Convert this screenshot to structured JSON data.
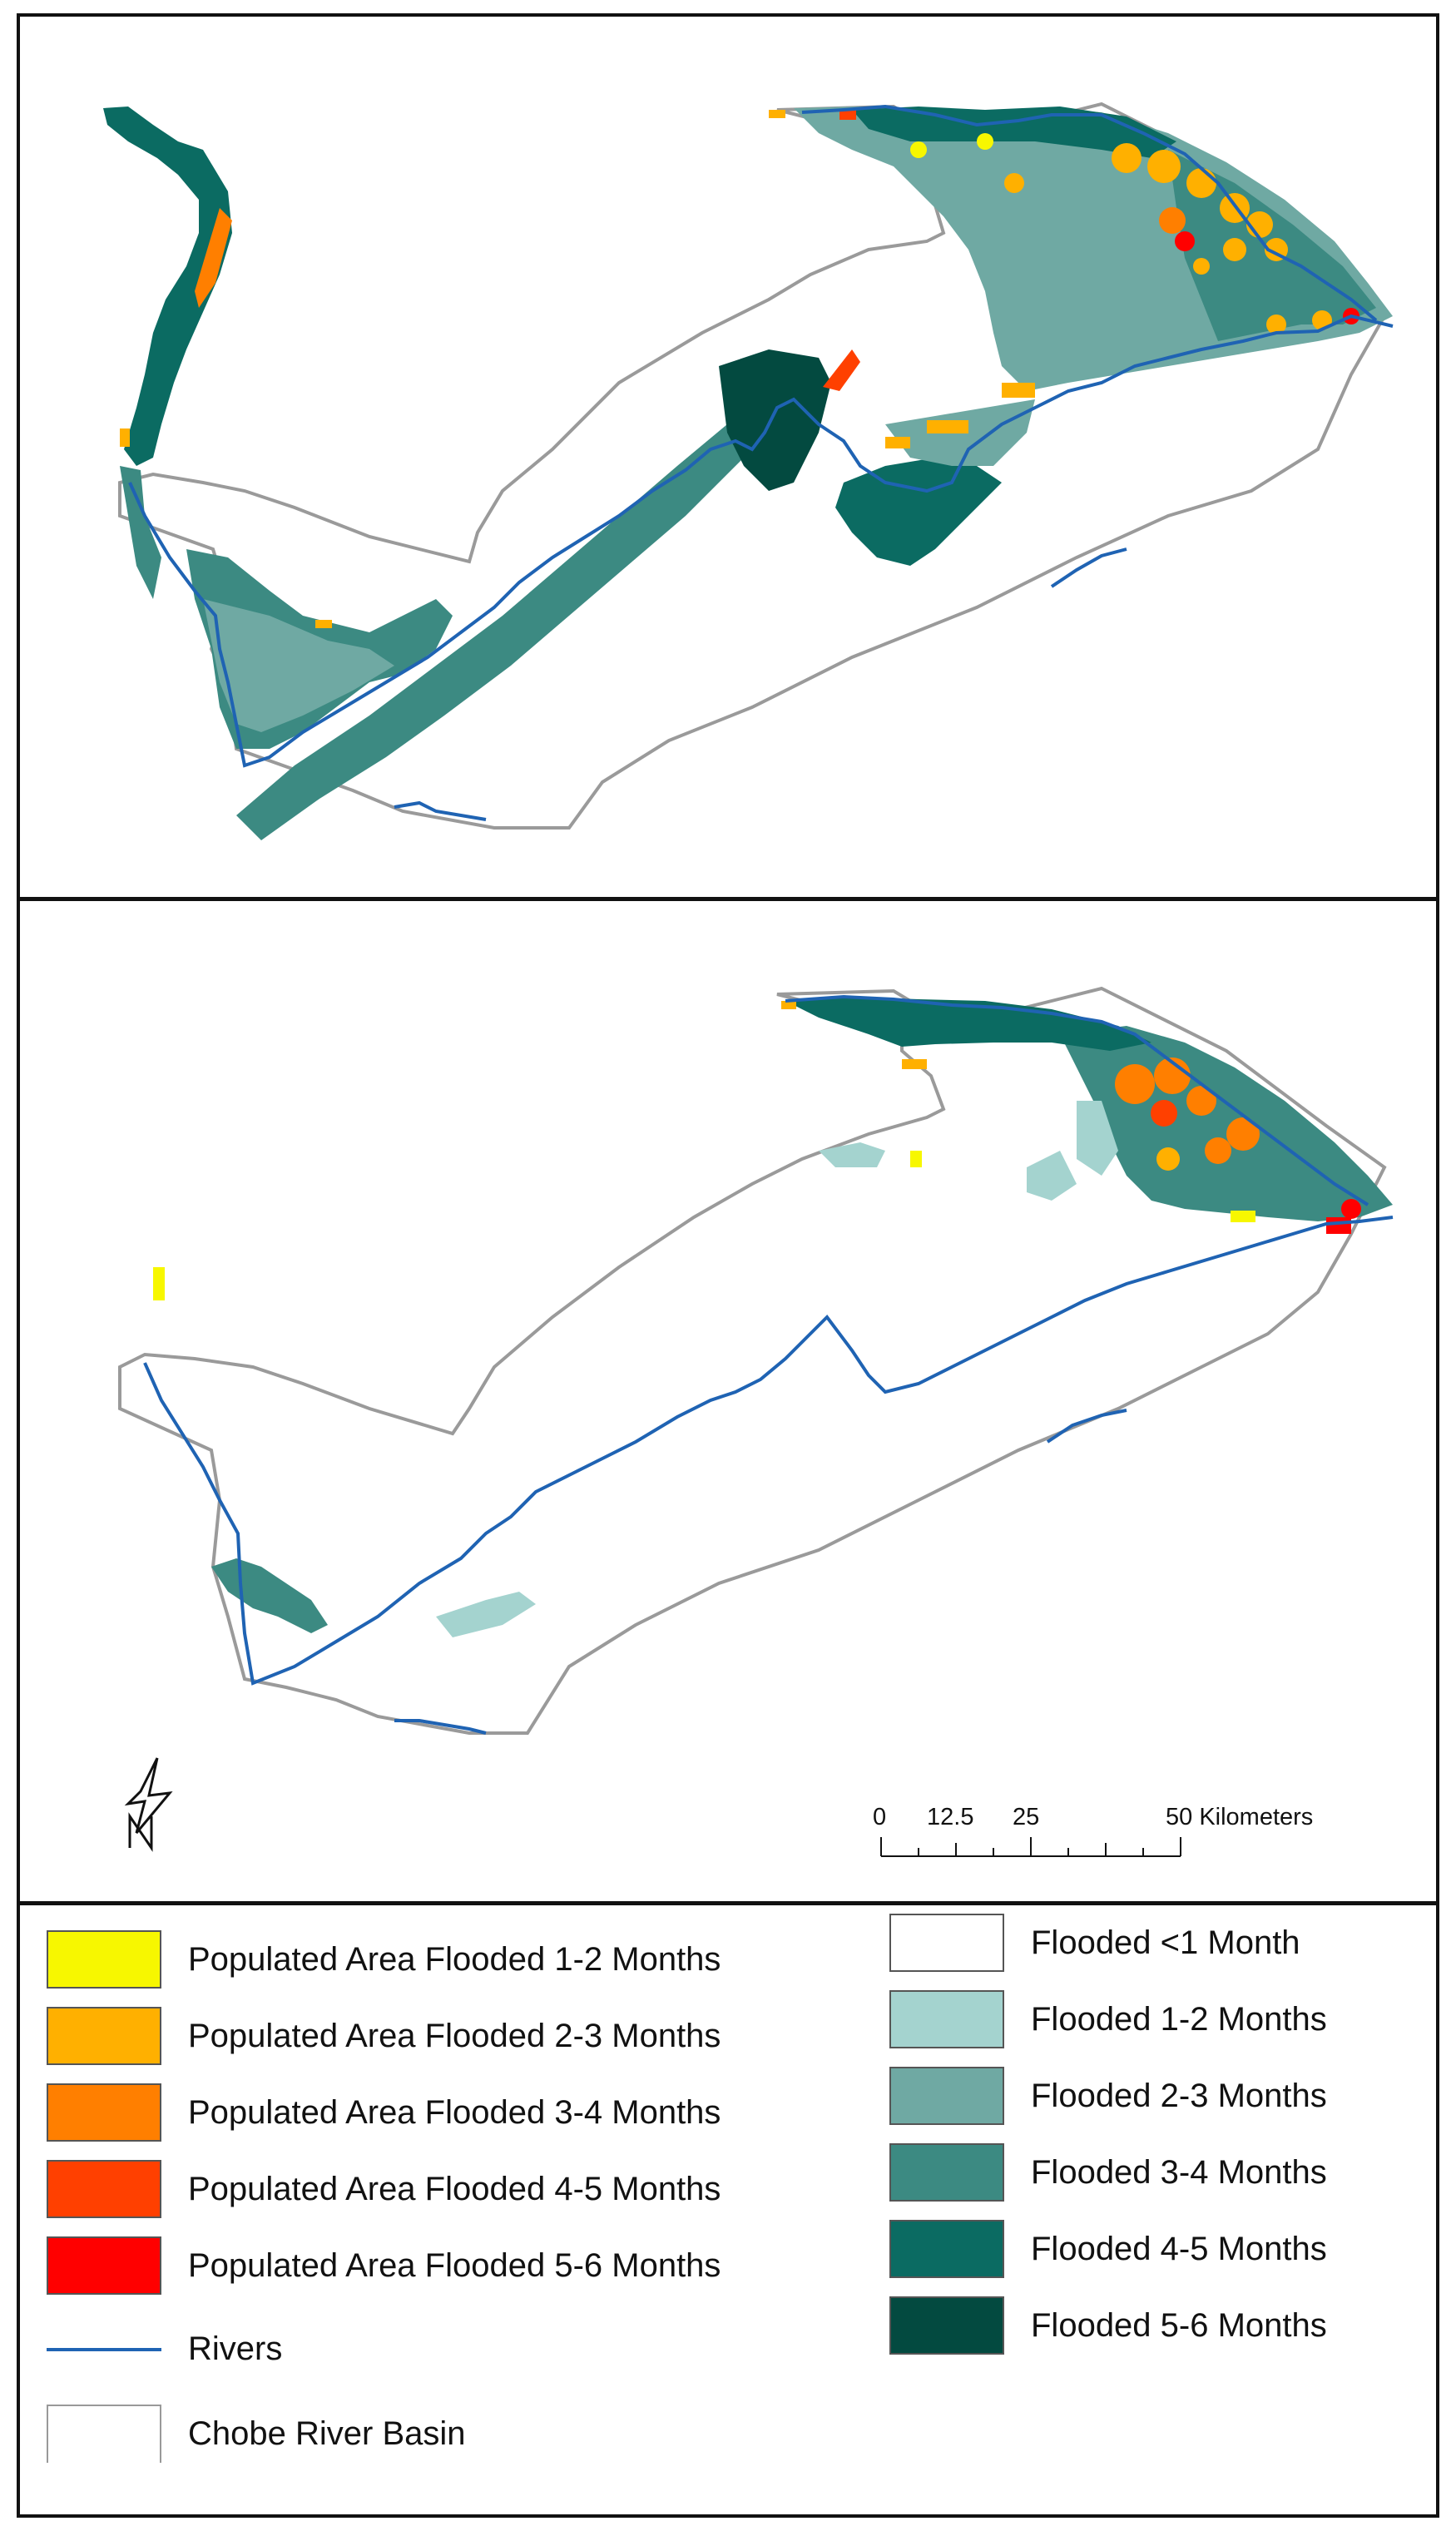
{
  "scale_bar": {
    "labels": [
      "0",
      "12.5",
      "25",
      "50 Kilometers"
    ]
  },
  "north_arrow": {
    "icon": "north-arrow-icon"
  },
  "legend": {
    "populated": [
      {
        "label": "Populated Area Flooded 1-2 Months",
        "color": "#f7f700"
      },
      {
        "label": "Populated Area Flooded 2-3 Months",
        "color": "#ffb000"
      },
      {
        "label": "Populated Area Flooded 3-4 Months",
        "color": "#ff7f00"
      },
      {
        "label": "Populated Area Flooded 4-5 Months",
        "color": "#ff4000"
      },
      {
        "label": "Populated Area Flooded 5-6 Months",
        "color": "#ff0000"
      }
    ],
    "flooded": [
      {
        "label": "Flooded <1 Month",
        "color": "#ffffff"
      },
      {
        "label": "Flooded 1-2 Months",
        "color": "#a4d3cf"
      },
      {
        "label": "Flooded 2-3 Months",
        "color": "#6fa9a3"
      },
      {
        "label": "Flooded 3-4 Months",
        "color": "#3c8a82"
      },
      {
        "label": "Flooded 4-5 Months",
        "color": "#0b6b62"
      },
      {
        "label": "Flooded 5-6 Months",
        "color": "#034a40"
      }
    ],
    "rivers": {
      "label": "Rivers",
      "color": "#1f63b3"
    },
    "basin": {
      "label": "Chobe River Basin",
      "color": "#999999"
    }
  }
}
